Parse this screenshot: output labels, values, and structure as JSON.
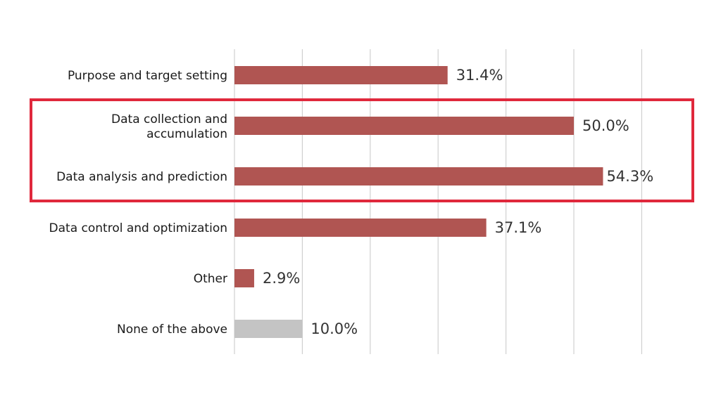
{
  "chart_data": {
    "type": "bar",
    "orientation": "horizontal",
    "categories": [
      "Purpose and target setting",
      "Data collection and accumulation",
      "Data analysis and prediction",
      "Data control and optimization",
      "Other",
      "None of the above"
    ],
    "values": [
      31.4,
      50.0,
      54.3,
      37.1,
      2.9,
      10.0
    ],
    "value_labels": [
      "31.4%",
      "50.0%",
      "54.3%",
      "37.1%",
      "2.9%",
      "10.0%"
    ],
    "xlim": [
      0,
      60
    ],
    "grid": true,
    "title": "",
    "xlabel": "",
    "ylabel": "",
    "highlighted_categories": [
      "Data collection and accumulation",
      "Data analysis and prediction"
    ],
    "colors": {
      "bar": "#b05552",
      "bar_none": "#c4c4c4",
      "grid": "#d0d0d0",
      "highlight_box": "#e0283c"
    }
  }
}
